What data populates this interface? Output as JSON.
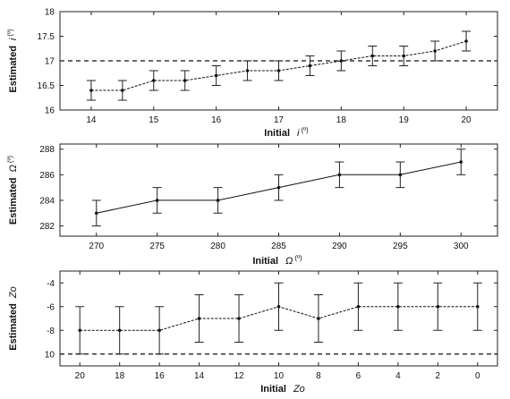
{
  "chart_data": [
    {
      "type": "line",
      "panel": "inclination",
      "x": [
        14,
        14.5,
        15,
        15.5,
        16,
        16.5,
        17,
        17.5,
        18,
        18.5,
        19,
        19.5,
        20
      ],
      "y": [
        16.4,
        16.4,
        16.6,
        16.6,
        16.7,
        16.8,
        16.8,
        16.9,
        17.0,
        17.1,
        17.1,
        17.2,
        17.4
      ],
      "err": [
        0.2,
        0.2,
        0.2,
        0.2,
        0.2,
        0.2,
        0.2,
        0.2,
        0.2,
        0.2,
        0.2,
        0.2,
        0.2
      ],
      "xlim": [
        13.5,
        20.5
      ],
      "ylim": [
        16,
        18
      ],
      "xticks": [
        "14",
        "15",
        "16",
        "17",
        "18",
        "19",
        "20"
      ],
      "yticks": [
        "16",
        "16.5",
        "17",
        "17.5",
        "18"
      ],
      "reference_line": 17,
      "xlabel": "Initial",
      "xlabel_symbol": "i",
      "xlabel_unit": "(º)",
      "ylabel": "Estimated",
      "ylabel_symbol": "i",
      "ylabel_unit": "(º)"
    },
    {
      "type": "line",
      "panel": "omega",
      "x": [
        270,
        275,
        280,
        285,
        290,
        295,
        300
      ],
      "y": [
        283,
        284,
        284,
        285,
        286,
        286,
        287
      ],
      "err": [
        1,
        1,
        1,
        1,
        1,
        1,
        1
      ],
      "xlim": [
        267,
        303
      ],
      "ylim": [
        281.2,
        288.4
      ],
      "xticks": [
        "270",
        "275",
        "280",
        "285",
        "290",
        "295",
        "300"
      ],
      "yticks": [
        "282",
        "284",
        "286",
        "288"
      ],
      "xlabel": "Initial",
      "xlabel_symbol": "Ω",
      "xlabel_unit": "(º)",
      "ylabel": "Estimated",
      "ylabel_symbol": "Ω",
      "ylabel_unit": "(º)"
    },
    {
      "type": "line",
      "panel": "zo",
      "x": [
        20,
        18,
        16,
        14,
        12,
        10,
        8,
        6,
        4,
        2,
        0
      ],
      "y": [
        -8,
        -8,
        -8,
        -7,
        -7,
        -6,
        -7,
        -6,
        -6,
        -6,
        -6
      ],
      "err": [
        2,
        2,
        2,
        2,
        2,
        2,
        2,
        2,
        2,
        2,
        2
      ],
      "xlim": [
        21,
        -1
      ],
      "ylim": [
        -11,
        -3
      ],
      "xticks": [
        "20",
        "18",
        "16",
        "14",
        "12",
        "10",
        "8",
        "6",
        "4",
        "2",
        "0"
      ],
      "yticks": [
        "-4",
        "-6",
        "-8",
        "10"
      ],
      "reference_line": -10,
      "xlabel": "Initial",
      "xlabel_symbol": "Zo",
      "ylabel": "Estimated",
      "ylabel_symbol": "Zo"
    }
  ]
}
